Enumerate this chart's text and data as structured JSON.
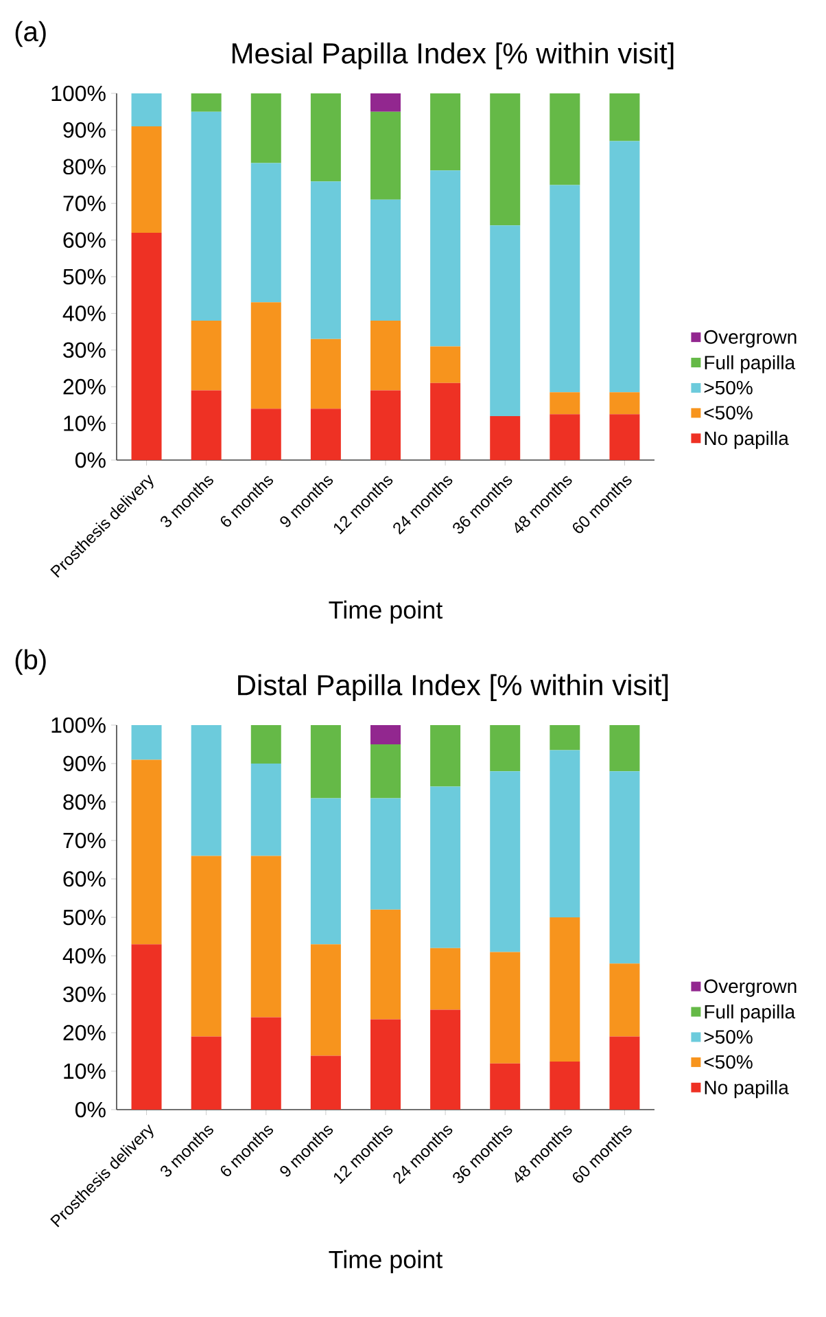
{
  "chart_data": [
    {
      "type": "bar",
      "stacked": true,
      "title": "Mesial Papilla Index [% within visit]",
      "xlabel": "Time point",
      "annotations": [
        "(a)"
      ],
      "legend": "right",
      "categories": [
        "Prosthesis delivery",
        "3 months",
        "6 months",
        "9 months",
        "12 months",
        "24 months",
        "36 months",
        "48 months",
        "60 months"
      ],
      "series": [
        {
          "name": "No papilla",
          "color": "#ee3124",
          "values": [
            62,
            19,
            14,
            14,
            19,
            21,
            12,
            12.5,
            12.5
          ]
        },
        {
          "name": "<50%",
          "color": "#f7941d",
          "values": [
            29,
            19,
            29,
            19,
            19,
            10,
            0,
            6,
            6
          ]
        },
        {
          "name": ">50%",
          "color": "#6ccbdc",
          "values": [
            9,
            57,
            38,
            43,
            33,
            48,
            52,
            56.5,
            68.5
          ]
        },
        {
          "name": "Full papilla",
          "color": "#65b947",
          "values": [
            0,
            5,
            19,
            24,
            24,
            21,
            36,
            25,
            13
          ]
        },
        {
          "name": "Overgrown",
          "color": "#92278f",
          "values": [
            0,
            0,
            0,
            0,
            5,
            0,
            0,
            0,
            0
          ]
        }
      ],
      "ylim": [
        0,
        100
      ],
      "yticks": [
        {
          "value": 0,
          "label": "0%"
        },
        {
          "value": 10,
          "label": "10%"
        },
        {
          "value": 20,
          "label": "20%"
        },
        {
          "value": 30,
          "label": "30%"
        },
        {
          "value": 40,
          "label": "40%"
        },
        {
          "value": 50,
          "label": "50%"
        },
        {
          "value": 60,
          "label": "60%"
        },
        {
          "value": 70,
          "label": "70%"
        },
        {
          "value": 80,
          "label": "80%"
        },
        {
          "value": 90,
          "label": "90%"
        },
        {
          "value": 100,
          "label": "100%"
        }
      ]
    },
    {
      "type": "bar",
      "stacked": true,
      "title": "Distal Papilla Index [% within visit]",
      "xlabel": "Time point",
      "annotations": [
        "(b)"
      ],
      "legend": "right",
      "categories": [
        "Prosthesis delivery",
        "3 months",
        "6 months",
        "9 months",
        "12 months",
        "24 months",
        "36 months",
        "48 months",
        "60 months"
      ],
      "series": [
        {
          "name": "No papilla",
          "color": "#ee3124",
          "values": [
            43,
            19,
            24,
            14,
            23.5,
            26,
            12,
            12.5,
            19
          ]
        },
        {
          "name": "<50%",
          "color": "#f7941d",
          "values": [
            48,
            47,
            42,
            29,
            28.5,
            16,
            29,
            37.5,
            19
          ]
        },
        {
          "name": ">50%",
          "color": "#6ccbdc",
          "values": [
            9,
            34,
            24,
            38,
            29,
            42,
            47,
            43.5,
            50
          ]
        },
        {
          "name": "Full papilla",
          "color": "#65b947",
          "values": [
            0,
            0,
            10,
            19,
            14,
            16,
            12,
            6.5,
            12
          ]
        },
        {
          "name": "Overgrown",
          "color": "#92278f",
          "values": [
            0,
            0,
            0,
            0,
            5,
            0,
            0,
            0,
            0
          ]
        }
      ],
      "ylim": [
        0,
        100
      ],
      "yticks": [
        {
          "value": 0,
          "label": "0%"
        },
        {
          "value": 10,
          "label": "10%"
        },
        {
          "value": 20,
          "label": "20%"
        },
        {
          "value": 30,
          "label": "30%"
        },
        {
          "value": 40,
          "label": "40%"
        },
        {
          "value": 50,
          "label": "50%"
        },
        {
          "value": 60,
          "label": "60%"
        },
        {
          "value": 70,
          "label": "70%"
        },
        {
          "value": 80,
          "label": "80%"
        },
        {
          "value": 90,
          "label": "90%"
        },
        {
          "value": 100,
          "label": "100%"
        }
      ]
    }
  ]
}
